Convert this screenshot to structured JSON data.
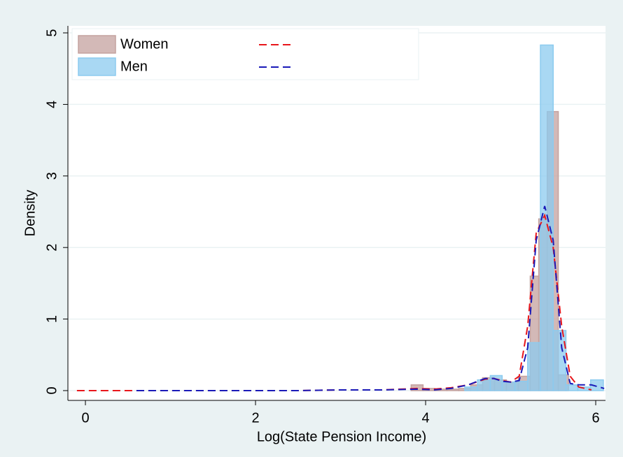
{
  "chart_data": {
    "type": "histogram",
    "x_label": "Log(State Pension Income)",
    "y_label": "Density",
    "xlim": [
      -0.206,
      6.115
    ],
    "ylim": [
      -0.137,
      5.098
    ],
    "xticks": [
      0,
      2,
      4,
      6
    ],
    "yticks": [
      0,
      1,
      2,
      3,
      4,
      5
    ],
    "grid": true,
    "legend": "top-left",
    "series": [
      {
        "name": "Women",
        "color": "#c4a29f",
        "bins": [
          3.83,
          3.97,
          4.11,
          4.25,
          4.39,
          4.53,
          4.67,
          4.81,
          4.95,
          5.09,
          5.23,
          5.33,
          5.43,
          5.56,
          5.68
        ],
        "values": [
          0.08,
          0.03,
          0.02,
          0.02,
          0.03,
          0.08,
          0.18,
          0.15,
          0.12,
          0.2,
          1.6,
          2.4,
          3.9,
          0.22
        ]
      },
      {
        "name": "Men",
        "color": "#8ccbef",
        "bins": [
          4.46,
          4.61,
          4.76,
          4.9,
          5.05,
          5.2,
          5.35,
          5.5,
          5.65,
          5.79,
          5.94,
          6.09
        ],
        "values": [
          0.05,
          0.15,
          0.21,
          0.12,
          0.13,
          0.67,
          4.83,
          0.84,
          0.08,
          0.05,
          0.15
        ]
      }
    ],
    "x": [
      -0.1,
      0.6,
      1,
      1.5,
      2,
      2.5,
      3,
      3.5,
      3.9,
      4.1,
      4.3,
      4.5,
      4.7,
      4.8,
      4.9,
      5.0,
      5.1,
      5.2,
      5.3,
      5.4,
      5.5,
      5.6,
      5.7,
      5.8,
      5.95,
      6.1
    ],
    "lines": [
      {
        "color": "#e8161b",
        "values": [
          0,
          0,
          0,
          0,
          0,
          0,
          0.01,
          0.01,
          0.03,
          0.02,
          0.04,
          0.08,
          0.16,
          0.17,
          0.14,
          0.12,
          0.2,
          0.9,
          2.2,
          2.45,
          2.0,
          0.9,
          0.2,
          0.05,
          0.01,
          null
        ]
      },
      {
        "color": "#1a1ab8",
        "values": [
          null,
          0,
          0,
          0,
          0,
          0,
          0.01,
          0.01,
          0.02,
          0.01,
          0.03,
          0.08,
          0.17,
          0.17,
          0.13,
          0.12,
          0.14,
          0.6,
          2.1,
          2.58,
          2.1,
          0.6,
          0.1,
          0.08,
          0.08,
          0.03
        ]
      }
    ]
  }
}
